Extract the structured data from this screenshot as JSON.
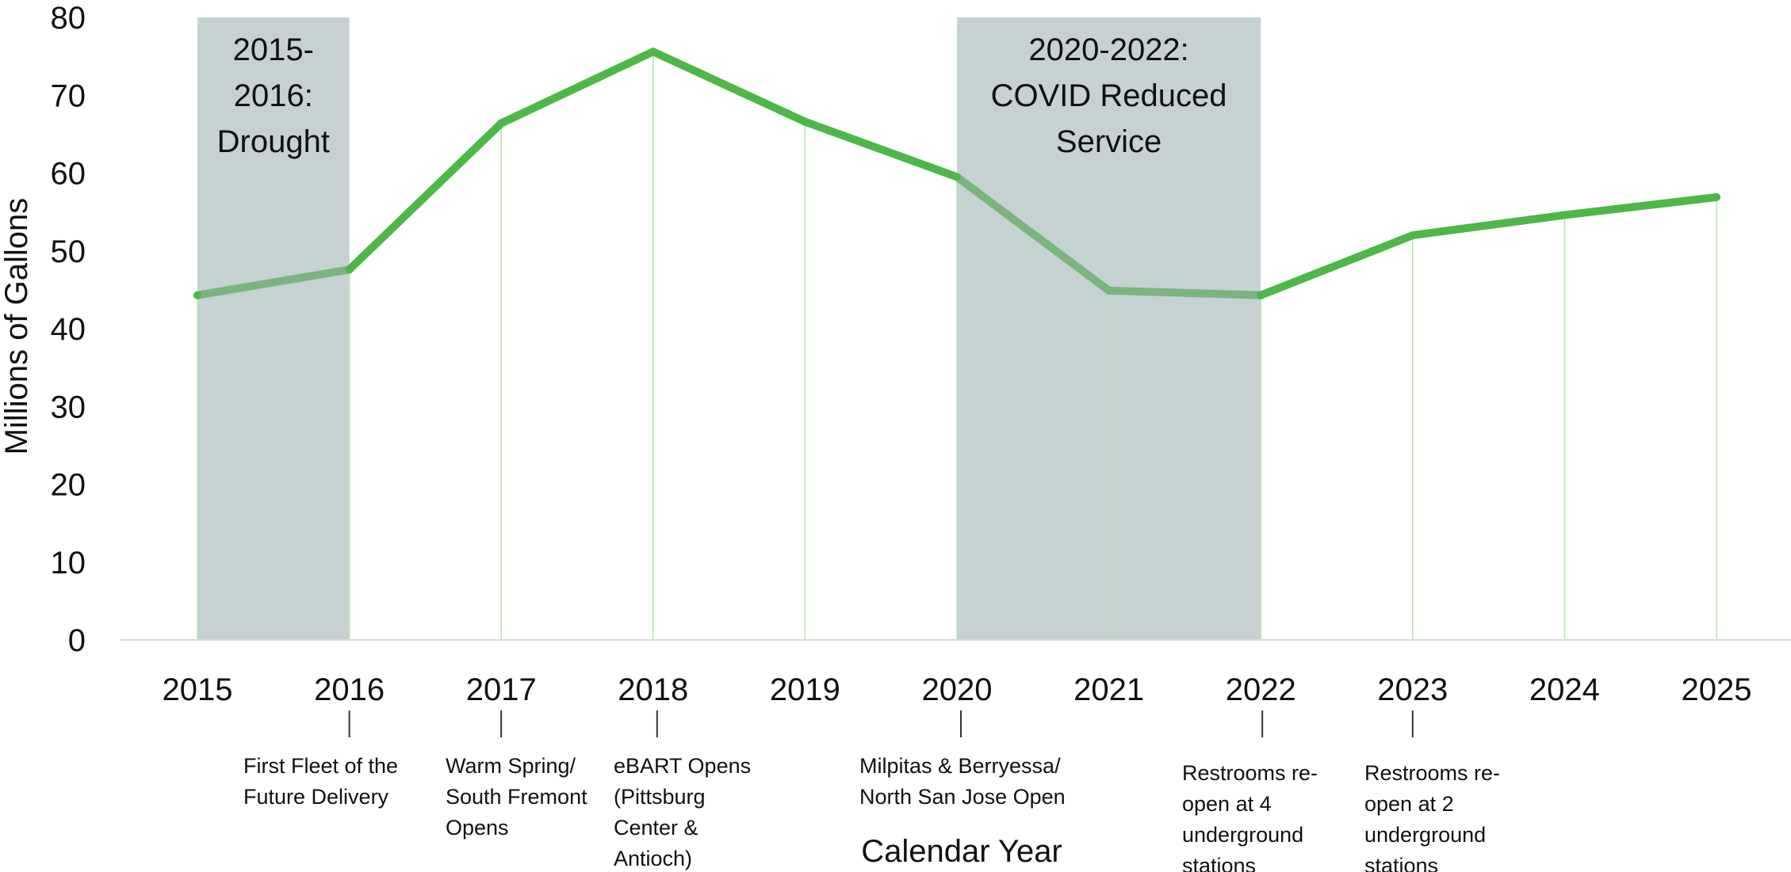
{
  "chart_data": {
    "type": "line",
    "xlabel": "Calendar Year",
    "ylabel": "Millions of Gallons",
    "ylim": [
      0,
      80
    ],
    "yticks": [
      0,
      10,
      20,
      30,
      40,
      50,
      60,
      70,
      80
    ],
    "categories": [
      "2015",
      "2016",
      "2017",
      "2018",
      "2019",
      "2020",
      "2021",
      "2022",
      "2023",
      "2024",
      "2025"
    ],
    "series": [
      {
        "values": [
          44.3,
          47.6,
          66.4,
          75.6,
          66.6,
          59.5,
          44.9,
          44.3,
          52.0,
          54.6,
          56.9
        ]
      }
    ],
    "grid": "vertical lines at each year",
    "colors": {
      "line": "#4db848",
      "line_in_band": "#7bb57d",
      "band": "#c5d2d1",
      "gridline": "#b8e3b5",
      "axis": "#d9d9d9"
    },
    "shaded_periods": [
      {
        "start": "2015",
        "end": "2016",
        "label_lines": [
          "2015-",
          "2016:",
          "Drought"
        ]
      },
      {
        "start": "2020",
        "end": "2022",
        "label_lines": [
          "2020-2022:",
          "COVID Reduced",
          "Service"
        ]
      }
    ],
    "annotations": [
      {
        "year": "2016",
        "lines": [
          "First Fleet of the",
          "Future Delivery"
        ]
      },
      {
        "year": "2017",
        "lines": [
          "Warm Spring/",
          "South Fremont",
          "Opens"
        ]
      },
      {
        "year": "2018",
        "lines": [
          "eBART Opens",
          "(Pittsburg",
          "Center &",
          "Antioch)"
        ]
      },
      {
        "year": "2020",
        "lines": [
          "Milpitas &  Berryessa/",
          "North San Jose Open"
        ]
      },
      {
        "year": "2022",
        "lines": [
          "Restrooms re-",
          "open at 4",
          "underground",
          "stations"
        ]
      },
      {
        "year": "2023",
        "lines": [
          "Restrooms re-",
          "open at 2",
          "underground",
          "stations"
        ]
      }
    ]
  }
}
